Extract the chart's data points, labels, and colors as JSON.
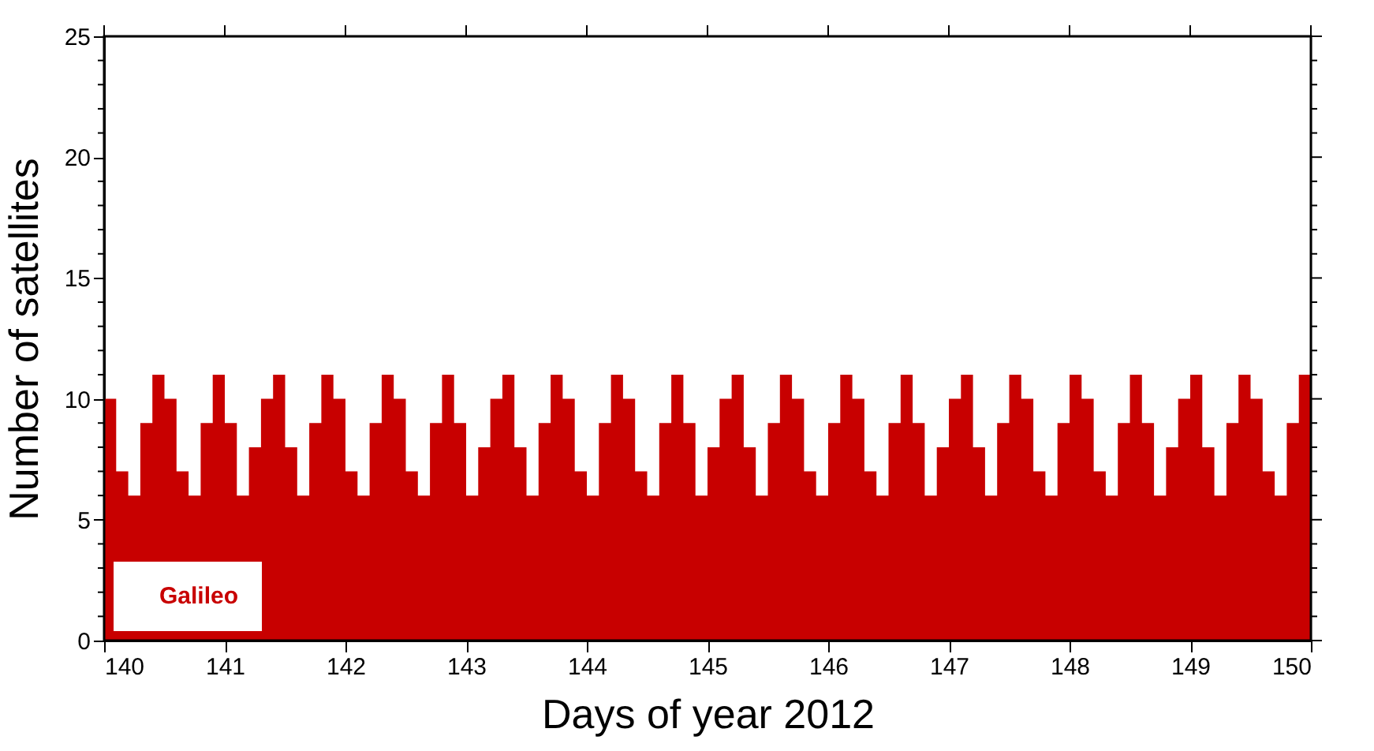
{
  "chart_data": {
    "type": "area",
    "xlabel": "Days of year 2012",
    "ylabel": "Number of satellites",
    "x": [
      140.0,
      140.1,
      140.2,
      140.3,
      140.4,
      140.5,
      140.6,
      140.7,
      140.8,
      140.9,
      141.0,
      141.1,
      141.2,
      141.3,
      141.4,
      141.5,
      141.6,
      141.7,
      141.8,
      141.9,
      142.0,
      142.1,
      142.2,
      142.3,
      142.4,
      142.5,
      142.6,
      142.7,
      142.8,
      142.9,
      143.0,
      143.1,
      143.2,
      143.3,
      143.4,
      143.5,
      143.6,
      143.7,
      143.8,
      143.9,
      144.0,
      144.1,
      144.2,
      144.3,
      144.4,
      144.5,
      144.6,
      144.7,
      144.8,
      144.9,
      145.0,
      145.1,
      145.2,
      145.3,
      145.4,
      145.5,
      145.6,
      145.7,
      145.8,
      145.9,
      146.0,
      146.1,
      146.2,
      146.3,
      146.4,
      146.5,
      146.6,
      146.7,
      146.8,
      146.9,
      147.0,
      147.1,
      147.2,
      147.3,
      147.4,
      147.5,
      147.6,
      147.7,
      147.8,
      147.9,
      148.0,
      148.1,
      148.2,
      148.3,
      148.4,
      148.5,
      148.6,
      148.7,
      148.8,
      148.9,
      149.0,
      149.1,
      149.2,
      149.3,
      149.4,
      149.5,
      149.6,
      149.7,
      149.8,
      149.9,
      150.0
    ],
    "series": [
      {
        "name": "Galileo",
        "color": "#c80000",
        "values": [
          10,
          7,
          6,
          9,
          11,
          10,
          7,
          6,
          9,
          11,
          9,
          6,
          8,
          10,
          11,
          8,
          6,
          9,
          11,
          10,
          7,
          6,
          9,
          11,
          10,
          7,
          6,
          9,
          11,
          9,
          6,
          8,
          10,
          11,
          8,
          6,
          9,
          11,
          10,
          7,
          6,
          9,
          11,
          10,
          7,
          6,
          9,
          11,
          9,
          6,
          8,
          10,
          11,
          8,
          6,
          9,
          11,
          10,
          7,
          6,
          9,
          11,
          10,
          7,
          6,
          9,
          11,
          9,
          6,
          8,
          10,
          11,
          8,
          6,
          9,
          11,
          10,
          7,
          6,
          9,
          11,
          10,
          7,
          6,
          9,
          11,
          9,
          6,
          8,
          10,
          11,
          8,
          6,
          9,
          11,
          10,
          7,
          6,
          9,
          11,
          10
        ]
      }
    ],
    "xlim": [
      140,
      150
    ],
    "xticks": [
      140,
      141,
      142,
      143,
      144,
      145,
      146,
      147,
      148,
      149,
      150
    ],
    "ylim": [
      0,
      25
    ],
    "yticks": [
      0,
      {
        "value": 1,
        "label": null
      },
      {
        "value": 2,
        "label": null
      },
      {
        "value": 3,
        "label": null
      },
      {
        "value": 4,
        "label": null
      },
      5,
      {
        "value": 6,
        "label": null
      },
      {
        "value": 7,
        "label": null
      },
      {
        "value": 8,
        "label": null
      },
      {
        "value": 9,
        "label": null
      },
      10,
      {
        "value": 11,
        "label": null
      },
      {
        "value": 12,
        "label": null
      },
      {
        "value": 13,
        "label": null
      },
      {
        "value": 14,
        "label": null
      },
      15,
      {
        "value": 16,
        "label": null
      },
      {
        "value": 17,
        "label": null
      },
      {
        "value": 18,
        "label": null
      },
      {
        "value": 19,
        "label": null
      },
      20,
      {
        "value": 21,
        "label": null
      },
      {
        "value": 22,
        "label": null
      },
      {
        "value": 23,
        "label": null
      },
      {
        "value": 24,
        "label": null
      },
      25
    ],
    "legend": "bottom left",
    "grid": false
  }
}
